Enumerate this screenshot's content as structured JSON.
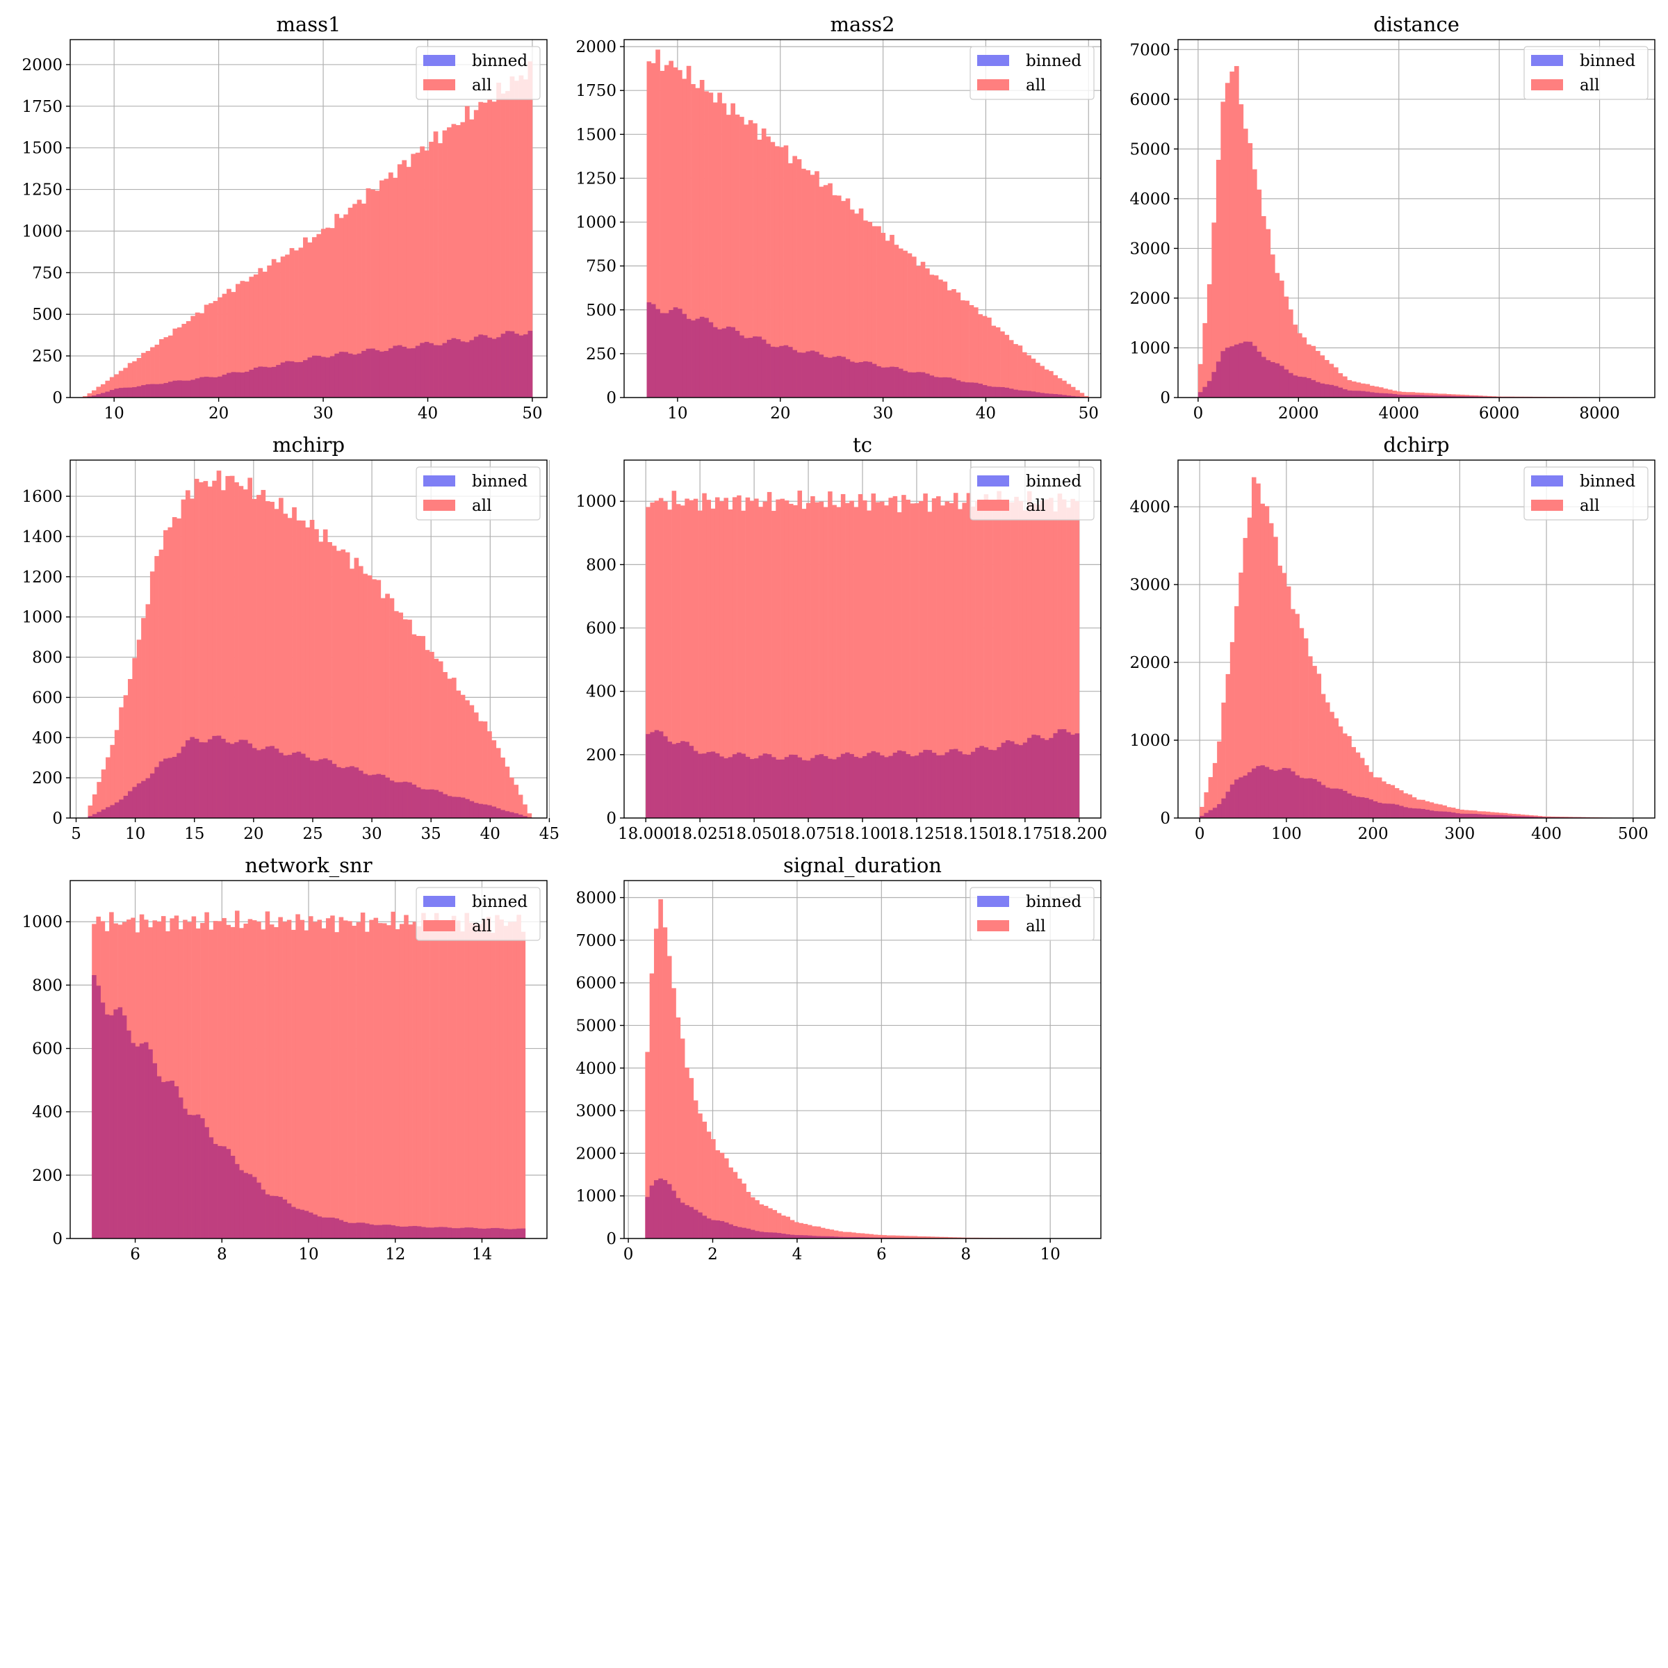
{
  "colors": {
    "binned": "#7f7ff5",
    "all": "#ff7f7f",
    "overlap": "#bf3f7f",
    "grid": "#b0b0b0"
  },
  "legend": {
    "placement": "upper-right",
    "entries": [
      "binned",
      "all"
    ]
  },
  "chart_data": [
    {
      "type": "histogram",
      "title": "mass1",
      "xlim": [
        5.8,
        51.4
      ],
      "ylim": [
        0,
        2150
      ],
      "xticks": [
        10,
        20,
        30,
        40,
        50
      ],
      "yticks": [
        0,
        250,
        500,
        750,
        1000,
        1250,
        1500,
        1750,
        2000
      ],
      "bins": {
        "start": 7,
        "end": 50,
        "count": 100
      },
      "series": [
        {
          "name": "all",
          "profile": [
            [
              7,
              0
            ],
            [
              8,
              40
            ],
            [
              10,
              130
            ],
            [
              20,
              600
            ],
            [
              30,
              1000
            ],
            [
              40,
              1520
            ],
            [
              50,
              1980
            ]
          ]
        },
        {
          "name": "binned",
          "profile": [
            [
              7,
              0
            ],
            [
              8,
              10
            ],
            [
              10,
              50
            ],
            [
              20,
              130
            ],
            [
              30,
              250
            ],
            [
              40,
              320
            ],
            [
              50,
              400
            ]
          ]
        }
      ]
    },
    {
      "type": "histogram",
      "title": "mass2",
      "xlim": [
        4.8,
        51.2
      ],
      "ylim": [
        0,
        2040
      ],
      "xticks": [
        10,
        20,
        30,
        40,
        50
      ],
      "yticks": [
        0,
        250,
        500,
        750,
        1000,
        1250,
        1500,
        1750,
        2000
      ],
      "bins": {
        "start": 7,
        "end": 50,
        "count": 100
      },
      "series": [
        {
          "name": "all",
          "profile": [
            [
              7,
              1940
            ],
            [
              10,
              1880
            ],
            [
              20,
              1430
            ],
            [
              30,
              940
            ],
            [
              40,
              460
            ],
            [
              45,
              200
            ],
            [
              50,
              0
            ]
          ]
        },
        {
          "name": "binned",
          "profile": [
            [
              7,
              520
            ],
            [
              10,
              490
            ],
            [
              20,
              290
            ],
            [
              30,
              180
            ],
            [
              40,
              70
            ],
            [
              45,
              30
            ],
            [
              50,
              0
            ]
          ]
        }
      ]
    },
    {
      "type": "histogram",
      "title": "distance",
      "xlim": [
        -400,
        9100
      ],
      "ylim": [
        0,
        7200
      ],
      "xticks": [
        0,
        2000,
        4000,
        6000,
        8000
      ],
      "yticks": [
        0,
        1000,
        2000,
        3000,
        4000,
        5000,
        6000,
        7000
      ],
      "bins": {
        "start": 0,
        "end": 9000,
        "count": 100
      },
      "series": [
        {
          "name": "all",
          "profile": [
            [
              0,
              300
            ],
            [
              200,
              2000
            ],
            [
              500,
              6000
            ],
            [
              700,
              6800
            ],
            [
              1000,
              5200
            ],
            [
              1500,
              2800
            ],
            [
              2000,
              1300
            ],
            [
              3000,
              350
            ],
            [
              4000,
              120
            ],
            [
              6000,
              20
            ],
            [
              9000,
              0
            ]
          ]
        },
        {
          "name": "binned",
          "profile": [
            [
              0,
              50
            ],
            [
              200,
              300
            ],
            [
              500,
              900
            ],
            [
              800,
              1150
            ],
            [
              1000,
              1100
            ],
            [
              1500,
              700
            ],
            [
              2000,
              430
            ],
            [
              3000,
              150
            ],
            [
              4000,
              60
            ],
            [
              6000,
              10
            ],
            [
              9000,
              0
            ]
          ]
        }
      ]
    },
    {
      "type": "histogram",
      "title": "mchirp",
      "xlim": [
        4.5,
        44.8
      ],
      "ylim": [
        0,
        1780
      ],
      "xticks": [
        5,
        10,
        15,
        20,
        25,
        30,
        35,
        40,
        45
      ],
      "yticks": [
        0,
        200,
        400,
        600,
        800,
        1000,
        1200,
        1400,
        1600
      ],
      "bins": {
        "start": 6,
        "end": 43.5,
        "count": 100
      },
      "series": [
        {
          "name": "all",
          "profile": [
            [
              6,
              30
            ],
            [
              8,
              350
            ],
            [
              10,
              800
            ],
            [
              12,
              1350
            ],
            [
              15,
              1660
            ],
            [
              18,
              1690
            ],
            [
              20,
              1630
            ],
            [
              25,
              1450
            ],
            [
              30,
              1200
            ],
            [
              35,
              830
            ],
            [
              40,
              430
            ],
            [
              43.5,
              0
            ]
          ]
        },
        {
          "name": "binned",
          "profile": [
            [
              6,
              5
            ],
            [
              8,
              60
            ],
            [
              10,
              150
            ],
            [
              12,
              260
            ],
            [
              15,
              395
            ],
            [
              18,
              390
            ],
            [
              20,
              360
            ],
            [
              25,
              300
            ],
            [
              30,
              220
            ],
            [
              35,
              140
            ],
            [
              40,
              60
            ],
            [
              43.5,
              0
            ]
          ]
        }
      ]
    },
    {
      "type": "histogram",
      "title": "tc",
      "xlim": [
        17.99,
        18.21
      ],
      "ylim": [
        0,
        1130
      ],
      "xticks": [
        18.0,
        18.025,
        18.05,
        18.075,
        18.1,
        18.125,
        18.15,
        18.175,
        18.2
      ],
      "xtick_labels": [
        "18.000",
        "18.025",
        "18.050",
        "18.075",
        "18.100",
        "18.125",
        "18.150",
        "18.175",
        "18.200"
      ],
      "yticks": [
        0,
        200,
        400,
        600,
        800,
        1000
      ],
      "bins": {
        "start": 18.0,
        "end": 18.2,
        "count": 100
      },
      "series": [
        {
          "name": "all",
          "profile": [
            [
              18.0,
              1000
            ],
            [
              18.2,
              1000
            ]
          ]
        },
        {
          "name": "binned",
          "profile": [
            [
              18.0,
              280
            ],
            [
              18.03,
              200
            ],
            [
              18.075,
              190
            ],
            [
              18.1,
              200
            ],
            [
              18.15,
              210
            ],
            [
              18.2,
              280
            ]
          ]
        }
      ]
    },
    {
      "type": "histogram",
      "title": "dchirp",
      "xlim": [
        -25,
        525
      ],
      "ylim": [
        0,
        4600
      ],
      "xticks": [
        0,
        100,
        200,
        300,
        400,
        500
      ],
      "yticks": [
        0,
        1000,
        2000,
        3000,
        4000
      ],
      "bins": {
        "start": 0,
        "end": 500,
        "count": 100
      },
      "series": [
        {
          "name": "all",
          "profile": [
            [
              0,
              50
            ],
            [
              20,
              800
            ],
            [
              40,
              2500
            ],
            [
              60,
              4200
            ],
            [
              65,
              4350
            ],
            [
              80,
              3900
            ],
            [
              100,
              3000
            ],
            [
              150,
              1400
            ],
            [
              200,
              550
            ],
            [
              250,
              250
            ],
            [
              300,
              110
            ],
            [
              400,
              20
            ],
            [
              500,
              0
            ]
          ]
        },
        {
          "name": "binned",
          "profile": [
            [
              0,
              10
            ],
            [
              20,
              150
            ],
            [
              40,
              450
            ],
            [
              60,
              640
            ],
            [
              80,
              650
            ],
            [
              100,
              620
            ],
            [
              150,
              400
            ],
            [
              200,
              220
            ],
            [
              250,
              120
            ],
            [
              300,
              60
            ],
            [
              400,
              10
            ],
            [
              500,
              0
            ]
          ]
        }
      ]
    },
    {
      "type": "histogram",
      "title": "network_snr",
      "xlim": [
        4.5,
        15.5
      ],
      "ylim": [
        0,
        1130
      ],
      "xticks": [
        6,
        8,
        10,
        12,
        14
      ],
      "yticks": [
        0,
        200,
        400,
        600,
        800,
        1000
      ],
      "bins": {
        "start": 5,
        "end": 15,
        "count": 100
      },
      "series": [
        {
          "name": "all",
          "profile": [
            [
              5,
              1000
            ],
            [
              15,
              1000
            ]
          ]
        },
        {
          "name": "binned",
          "profile": [
            [
              5,
              800
            ],
            [
              5.5,
              720
            ],
            [
              6,
              640
            ],
            [
              7,
              450
            ],
            [
              8,
              290
            ],
            [
              9,
              150
            ],
            [
              10,
              80
            ],
            [
              11,
              50
            ],
            [
              12,
              40
            ],
            [
              13,
              35
            ],
            [
              15,
              30
            ]
          ]
        }
      ]
    },
    {
      "type": "histogram",
      "title": "signal_duration",
      "xlim": [
        -0.1,
        11.2
      ],
      "ylim": [
        0,
        8400
      ],
      "xticks": [
        0,
        2,
        4,
        6,
        8,
        10
      ],
      "yticks": [
        0,
        1000,
        2000,
        3000,
        4000,
        5000,
        6000,
        7000,
        8000
      ],
      "bins": {
        "start": 0.4,
        "end": 10.8,
        "count": 100
      },
      "series": [
        {
          "name": "all",
          "profile": [
            [
              0.4,
              3000
            ],
            [
              0.5,
              5500
            ],
            [
              0.7,
              8000
            ],
            [
              0.9,
              7200
            ],
            [
              1.2,
              5000
            ],
            [
              1.6,
              3200
            ],
            [
              2,
              2300
            ],
            [
              3,
              900
            ],
            [
              4,
              380
            ],
            [
              5,
              170
            ],
            [
              6,
              80
            ],
            [
              8,
              20
            ],
            [
              10.8,
              0
            ]
          ]
        },
        {
          "name": "binned",
          "profile": [
            [
              0.4,
              700
            ],
            [
              0.5,
              1200
            ],
            [
              0.7,
              1500
            ],
            [
              0.9,
              1300
            ],
            [
              1.2,
              950
            ],
            [
              1.6,
              640
            ],
            [
              2,
              450
            ],
            [
              3,
              180
            ],
            [
              4,
              80
            ],
            [
              5,
              40
            ],
            [
              6,
              20
            ],
            [
              8,
              5
            ],
            [
              10.8,
              0
            ]
          ]
        }
      ]
    }
  ]
}
